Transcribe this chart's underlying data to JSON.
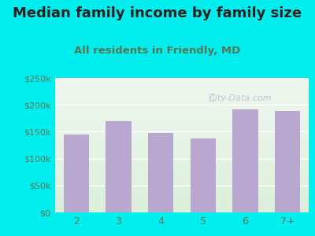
{
  "title": "Median family income by family size",
  "subtitle": "All residents in Friendly, MD",
  "categories": [
    "2",
    "3",
    "4",
    "5",
    "6",
    "7+"
  ],
  "values": [
    145000,
    170000,
    148000,
    138000,
    192000,
    188000
  ],
  "bar_color": "#b8a8d0",
  "background_outer": "#00eeee",
  "ylim": [
    0,
    250000
  ],
  "yticks": [
    0,
    50000,
    100000,
    150000,
    200000,
    250000
  ],
  "ytick_labels": [
    "$0",
    "$50k",
    "$100k",
    "$150k",
    "$200k",
    "$250k"
  ],
  "title_fontsize": 13,
  "subtitle_fontsize": 9.5,
  "tick_fontsize": 8,
  "xtick_fontsize": 9,
  "tick_color": "#557755",
  "title_color": "#222222",
  "subtitle_color": "#557755",
  "watermark": "City-Data.com",
  "watermark_color": "#aabbcc",
  "grid_color": "#ccddcc",
  "plot_bg_top": "#e8ede8",
  "plot_bg_bottom": "#d8ecd8"
}
